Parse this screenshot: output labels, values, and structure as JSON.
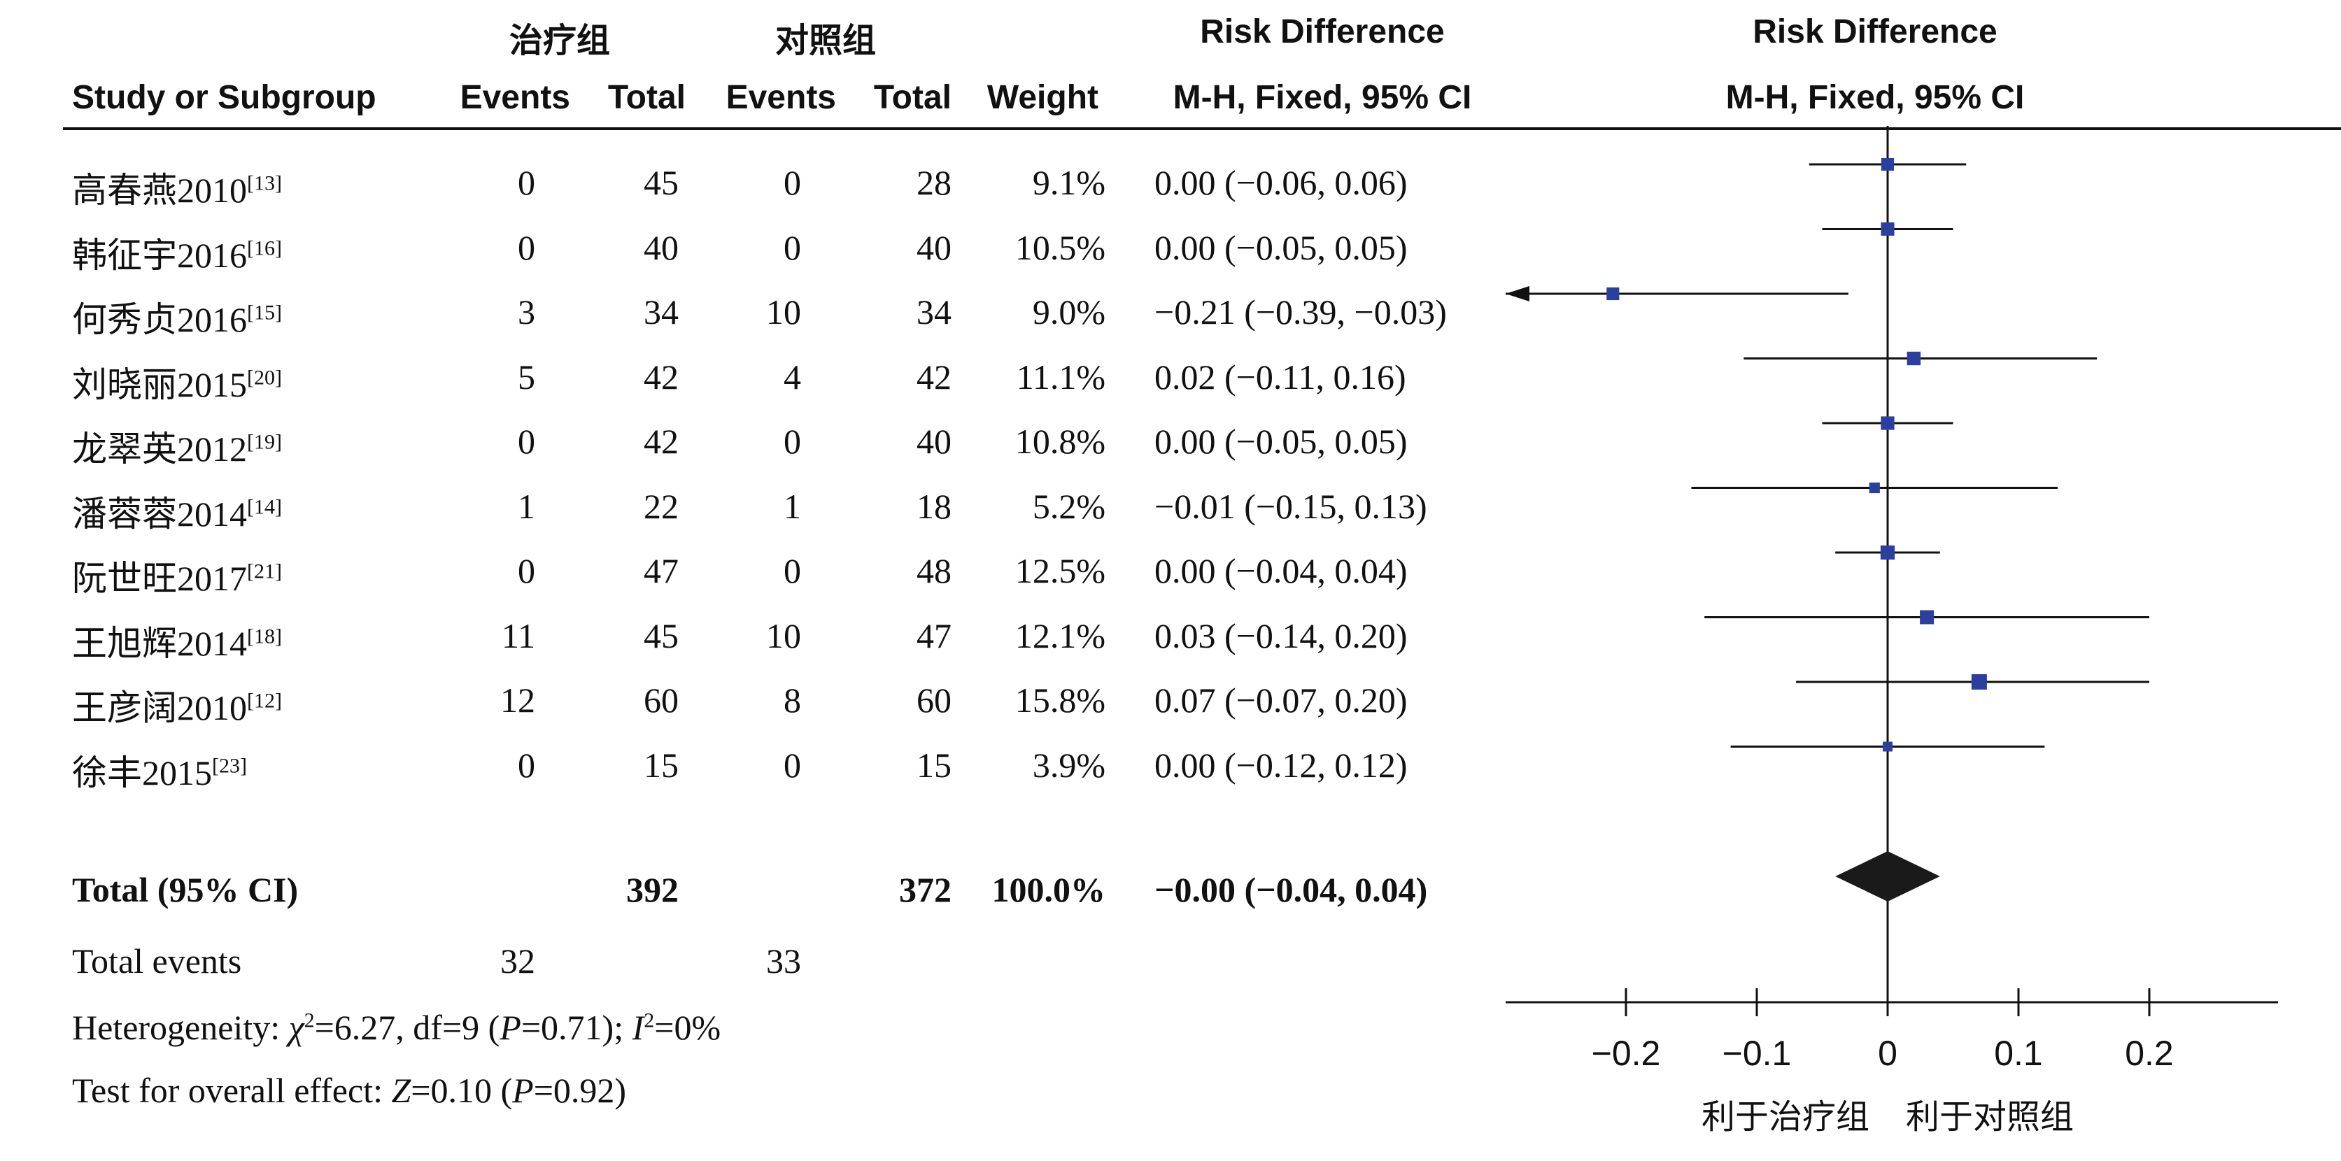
{
  "header": {
    "group1": "治疗组",
    "group2": "对照组",
    "rd_col": "Risk Difference",
    "rd_plot": "Risk Difference",
    "study": "Study or Subgroup",
    "events1": "Events",
    "total1": "Total",
    "events2": "Events",
    "total2": "Total",
    "weight": "Weight",
    "method_col": "M-H, Fixed, 95% CI",
    "method_plot": "M-H, Fixed, 95% CI"
  },
  "studies": [
    {
      "name": "高春燕2010",
      "ref": "[13]",
      "e1": "0",
      "t1": "45",
      "e2": "0",
      "t2": "28",
      "weight": "9.1%",
      "ci_text": "0.00 (−0.06, 0.06)"
    },
    {
      "name": "韩征宇2016",
      "ref": "[16]",
      "e1": "0",
      "t1": "40",
      "e2": "0",
      "t2": "40",
      "weight": "10.5%",
      "ci_text": "0.00 (−0.05, 0.05)"
    },
    {
      "name": "何秀贞2016",
      "ref": "[15]",
      "e1": "3",
      "t1": "34",
      "e2": "10",
      "t2": "34",
      "weight": "9.0%",
      "ci_text": "−0.21 (−0.39, −0.03)"
    },
    {
      "name": "刘晓丽2015",
      "ref": "[20]",
      "e1": "5",
      "t1": "42",
      "e2": "4",
      "t2": "42",
      "weight": "11.1%",
      "ci_text": "0.02 (−0.11, 0.16)"
    },
    {
      "name": "龙翠英2012",
      "ref": "[19]",
      "e1": "0",
      "t1": "42",
      "e2": "0",
      "t2": "40",
      "weight": "10.8%",
      "ci_text": "0.00 (−0.05, 0.05)"
    },
    {
      "name": "潘蓉蓉2014",
      "ref": "[14]",
      "e1": "1",
      "t1": "22",
      "e2": "1",
      "t2": "18",
      "weight": "5.2%",
      "ci_text": "−0.01 (−0.15, 0.13)"
    },
    {
      "name": "阮世旺2017",
      "ref": "[21]",
      "e1": "0",
      "t1": "47",
      "e2": "0",
      "t2": "48",
      "weight": "12.5%",
      "ci_text": "0.00 (−0.04, 0.04)"
    },
    {
      "name": "王旭辉2014",
      "ref": "[18]",
      "e1": "11",
      "t1": "45",
      "e2": "10",
      "t2": "47",
      "weight": "12.1%",
      "ci_text": "0.03 (−0.14, 0.20)"
    },
    {
      "name": "王彦阔2010",
      "ref": "[12]",
      "e1": "12",
      "t1": "60",
      "e2": "8",
      "t2": "60",
      "weight": "15.8%",
      "ci_text": "0.07 (−0.07, 0.20)"
    },
    {
      "name": "徐丰2015",
      "ref": "[23]",
      "e1": "0",
      "t1": "15",
      "e2": "0",
      "t2": "15",
      "weight": "3.9%",
      "ci_text": "0.00 (−0.12, 0.12)"
    }
  ],
  "total": {
    "label": "Total (95% CI)",
    "t1": "392",
    "t2": "372",
    "weight": "100.0%",
    "ci_text": "−0.00 (−0.04, 0.04)"
  },
  "total_events": {
    "label": "Total events",
    "e1": "32",
    "e2": "33"
  },
  "heterogeneity": {
    "prefix": "Heterogeneity: ",
    "chi": "χ",
    "chi_val": "=6.27, df=9 (",
    "p": "P",
    "p_val": "=0.71); ",
    "i": "I",
    "i_val": "=0%"
  },
  "overall": {
    "prefix": "Test for overall effect: ",
    "z": "Z",
    "z_val": "=0.10 (",
    "p": "P",
    "p_val": "=0.92)"
  },
  "axis": {
    "favours_left": "利于治疗组",
    "favours_right": "利于对照组"
  },
  "colors": {
    "marker": "#2b3f9e",
    "diamond": "#1a1a1a",
    "line": "#111111"
  },
  "chart_data": {
    "type": "forest",
    "title": "",
    "xlabel": "",
    "xlim": [
      -0.3,
      0.3
    ],
    "ticks": [
      -0.2,
      -0.1,
      0,
      0.1,
      0.2
    ],
    "tick_labels": [
      "−0.2",
      "−0.1",
      "0",
      "0.1",
      "0.2"
    ],
    "studies": [
      {
        "name": "高春燕2010",
        "rd": 0.0,
        "lo": -0.06,
        "hi": 0.06,
        "weight": 9.1
      },
      {
        "name": "韩征宇2016",
        "rd": 0.0,
        "lo": -0.05,
        "hi": 0.05,
        "weight": 10.5
      },
      {
        "name": "何秀贞2016",
        "rd": -0.21,
        "lo": -0.39,
        "hi": -0.03,
        "weight": 9.0
      },
      {
        "name": "刘晓丽2015",
        "rd": 0.02,
        "lo": -0.11,
        "hi": 0.16,
        "weight": 11.1
      },
      {
        "name": "龙翠英2012",
        "rd": 0.0,
        "lo": -0.05,
        "hi": 0.05,
        "weight": 10.8
      },
      {
        "name": "潘蓉蓉2014",
        "rd": -0.01,
        "lo": -0.15,
        "hi": 0.13,
        "weight": 5.2
      },
      {
        "name": "阮世旺2017",
        "rd": 0.0,
        "lo": -0.04,
        "hi": 0.04,
        "weight": 12.5
      },
      {
        "name": "王旭辉2014",
        "rd": 0.03,
        "lo": -0.14,
        "hi": 0.2,
        "weight": 12.1
      },
      {
        "name": "王彦阔2010",
        "rd": 0.07,
        "lo": -0.07,
        "hi": 0.2,
        "weight": 15.8
      },
      {
        "name": "徐丰2015",
        "rd": 0.0,
        "lo": -0.12,
        "hi": 0.12,
        "weight": 3.9
      }
    ],
    "pooled": {
      "rd": -0.0,
      "lo": -0.04,
      "hi": 0.04
    },
    "favours": [
      "利于治疗组",
      "利于对照组"
    ]
  }
}
